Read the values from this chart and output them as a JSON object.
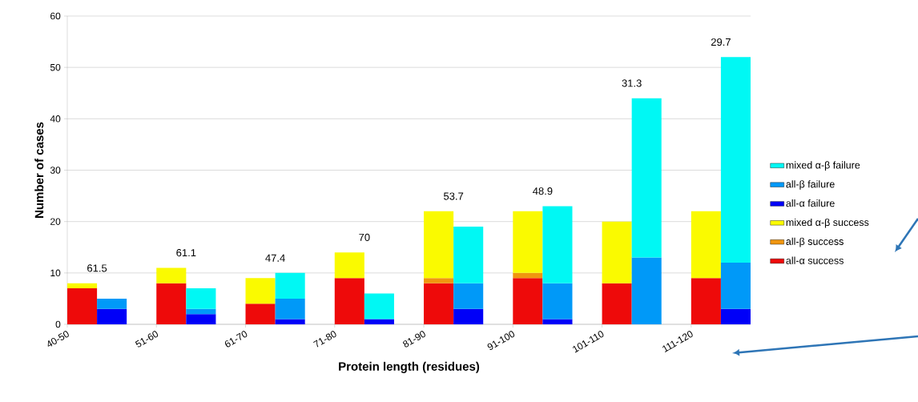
{
  "chart_data": {
    "type": "bar",
    "stacked": true,
    "xlabel": "Protein length (residues)",
    "ylabel": "Number of cases",
    "categories": [
      "40-50",
      null,
      "51-60",
      null,
      "61-70",
      null,
      "71-80",
      null,
      "81-90",
      null,
      "91-100",
      null,
      "101-110",
      null,
      "111-120",
      null
    ],
    "series": [
      {
        "name": "all-α success",
        "color": "#ee0a0a",
        "values": [
          7,
          null,
          8,
          null,
          4,
          null,
          9,
          null,
          8,
          null,
          9,
          null,
          8,
          null,
          9,
          null
        ]
      },
      {
        "name": "all-β success",
        "color": "#f0960f",
        "values": [
          0,
          null,
          0,
          null,
          0,
          null,
          0,
          null,
          1,
          null,
          1,
          null,
          0,
          null,
          0,
          null
        ]
      },
      {
        "name": "mixed α-β success",
        "color": "#fafa00",
        "values": [
          1,
          null,
          3,
          null,
          5,
          null,
          5,
          null,
          13,
          null,
          12,
          null,
          12,
          null,
          13,
          null
        ]
      },
      {
        "name": "all-α failure",
        "color": "#0000f8",
        "values": [
          null,
          3,
          null,
          2,
          null,
          1,
          null,
          1,
          null,
          3,
          null,
          1,
          null,
          0,
          null,
          3
        ]
      },
      {
        "name": "all-β failure",
        "color": "#0099f8",
        "values": [
          null,
          2,
          null,
          1,
          null,
          4,
          null,
          0,
          null,
          5,
          null,
          7,
          null,
          13,
          null,
          9
        ]
      },
      {
        "name": "mixed α-β failure",
        "color": "#00f8f4",
        "values": [
          null,
          0,
          null,
          4,
          null,
          5,
          null,
          5,
          null,
          11,
          null,
          15,
          null,
          31,
          null,
          40
        ]
      }
    ],
    "ylim": [
      0,
      60
    ],
    "yticks": [
      0,
      10,
      20,
      30,
      40,
      50,
      60
    ],
    "grid": "y",
    "legend": "right",
    "annotations": [
      "61.5",
      "61.1",
      "47.4",
      "70",
      "53.7",
      "48.9",
      "31.3",
      "29.7"
    ]
  }
}
